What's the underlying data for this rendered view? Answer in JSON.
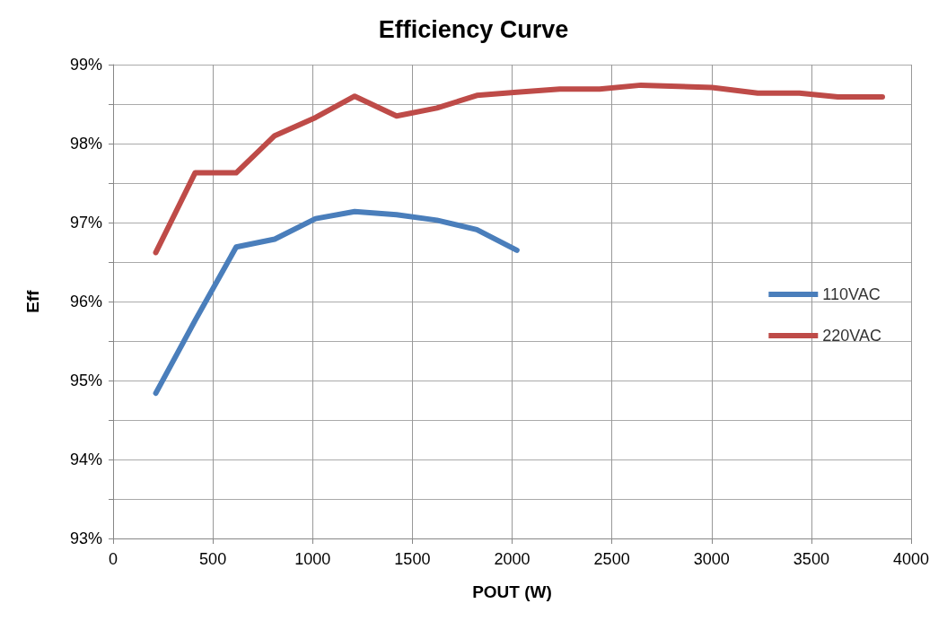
{
  "chart_data": {
    "type": "line",
    "title": "Efficiency Curve",
    "xlabel": "POUT (W)",
    "ylabel": "Eff",
    "xlim": [
      0,
      4000
    ],
    "xticks": [
      0,
      500,
      1000,
      1500,
      2000,
      2500,
      3000,
      3500,
      4000
    ],
    "ylim": [
      93,
      99
    ],
    "yticks": [
      {
        "value": 93,
        "label": "93%"
      },
      {
        "value": 93.5,
        "label": null
      },
      {
        "value": 94,
        "label": "94%"
      },
      {
        "value": 94.5,
        "label": null
      },
      {
        "value": 95,
        "label": "95%"
      },
      {
        "value": 95.5,
        "label": null
      },
      {
        "value": 96,
        "label": "96%"
      },
      {
        "value": 96.5,
        "label": null
      },
      {
        "value": 97,
        "label": "97%"
      },
      {
        "value": 97.5,
        "label": null
      },
      {
        "value": 98,
        "label": "98%"
      },
      {
        "value": 98.5,
        "label": null
      },
      {
        "value": 99,
        "label": "99%"
      }
    ],
    "grid": true,
    "legend": "right",
    "marker": "none",
    "line_style": "solid",
    "series": [
      {
        "name": "110VAC",
        "color": "#4a7ebb",
        "x": [
          214,
          411,
          617,
          810,
          1015,
          1211,
          1421,
          1623,
          1823,
          2024
        ],
        "values": [
          94.84,
          95.76,
          96.69,
          96.79,
          97.05,
          97.14,
          97.1,
          97.03,
          96.91,
          96.65
        ]
      },
      {
        "name": "220VAC",
        "color": "#be4b48",
        "x": [
          214,
          411,
          617,
          810,
          1015,
          1211,
          1421,
          1623,
          1823,
          2024,
          2239,
          2439,
          2646,
          3002,
          3231,
          3440,
          3633,
          3856
        ],
        "values": [
          96.62,
          97.63,
          97.63,
          98.1,
          98.33,
          98.6,
          98.35,
          98.45,
          98.61,
          98.65,
          98.69,
          98.69,
          98.74,
          98.71,
          98.64,
          98.64,
          98.59,
          98.59
        ]
      }
    ]
  }
}
